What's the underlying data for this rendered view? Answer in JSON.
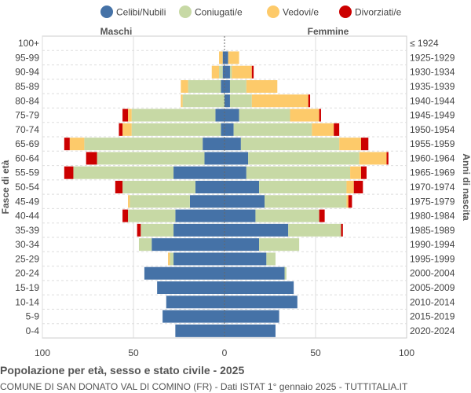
{
  "chart_data": {
    "type": "bar",
    "orientation": "horizontal-pyramid",
    "title": "Popolazione per età, sesso e stato civile - 2025",
    "subtitle": "COMUNE DI SAN DONATO VAL DI COMINO (FR) - Dati ISTAT 1° gennaio 2025 - TUTTITALIA.IT",
    "ylabel_left": "Fasce di età",
    "ylabel_right": "Anni di nascita",
    "left_title": "Maschi",
    "right_title": "Femmine",
    "xlim": [
      -100,
      100
    ],
    "xticks": [
      "100",
      "50",
      "0",
      "50",
      "100"
    ],
    "grid": true,
    "legend_position": "top",
    "legend": [
      {
        "name": "Celibi/Nubili",
        "color": "#4572a7"
      },
      {
        "name": "Coniugati/e",
        "color": "#c7d9a5"
      },
      {
        "name": "Vedovi/e",
        "color": "#fdca6a"
      },
      {
        "name": "Divorziati/e",
        "color": "#cc0000"
      }
    ],
    "categories": [
      "100+",
      "95-99",
      "90-94",
      "85-89",
      "80-84",
      "75-79",
      "70-74",
      "65-69",
      "60-64",
      "55-59",
      "50-54",
      "45-49",
      "40-44",
      "35-39",
      "30-34",
      "25-29",
      "20-24",
      "15-19",
      "10-14",
      "5-9",
      "0-4"
    ],
    "birth_years": [
      "≤ 1924",
      "1925-1929",
      "1930-1934",
      "1935-1939",
      "1940-1944",
      "1945-1949",
      "1950-1954",
      "1955-1959",
      "1960-1964",
      "1965-1969",
      "1970-1974",
      "1975-1979",
      "1980-1984",
      "1985-1989",
      "1990-1994",
      "1995-1999",
      "2000-2004",
      "2005-2009",
      "2010-2014",
      "2015-2019",
      "2020-2024"
    ],
    "males": {
      "Celibi/Nubili": [
        0,
        1,
        1,
        2,
        0,
        5,
        2,
        12,
        11,
        28,
        16,
        19,
        27,
        28,
        40,
        28,
        44,
        37,
        32,
        34,
        27
      ],
      "Coniugati/e": [
        0,
        0,
        2,
        18,
        23,
        46,
        49,
        65,
        59,
        55,
        40,
        33,
        26,
        18,
        7,
        2,
        0,
        0,
        0,
        0,
        0
      ],
      "Vedovi/e": [
        0,
        2,
        4,
        4,
        1,
        2,
        5,
        8,
        0,
        0,
        0,
        1,
        0,
        0,
        0,
        1,
        0,
        0,
        0,
        0,
        0
      ],
      "Divorziati/e": [
        0,
        0,
        0,
        0,
        0,
        3,
        2,
        3,
        6,
        5,
        4,
        0,
        3,
        2,
        0,
        0,
        0,
        0,
        0,
        0,
        0
      ]
    },
    "females": {
      "Celibi/Nubili": [
        0,
        2,
        3,
        3,
        3,
        8,
        5,
        9,
        13,
        12,
        19,
        22,
        17,
        35,
        19,
        23,
        33,
        38,
        40,
        30,
        28
      ],
      "Coniugati/e": [
        0,
        0,
        1,
        9,
        12,
        28,
        43,
        54,
        61,
        57,
        48,
        45,
        35,
        29,
        22,
        5,
        1,
        0,
        0,
        0,
        0
      ],
      "Vedovi/e": [
        0,
        6,
        11,
        17,
        31,
        16,
        12,
        12,
        15,
        6,
        4,
        1,
        0,
        0,
        0,
        0,
        0,
        0,
        0,
        0,
        0
      ],
      "Divorziati/e": [
        0,
        0,
        1,
        0,
        1,
        1,
        3,
        4,
        1,
        3,
        5,
        2,
        3,
        1,
        0,
        0,
        0,
        0,
        0,
        0,
        0
      ]
    }
  }
}
